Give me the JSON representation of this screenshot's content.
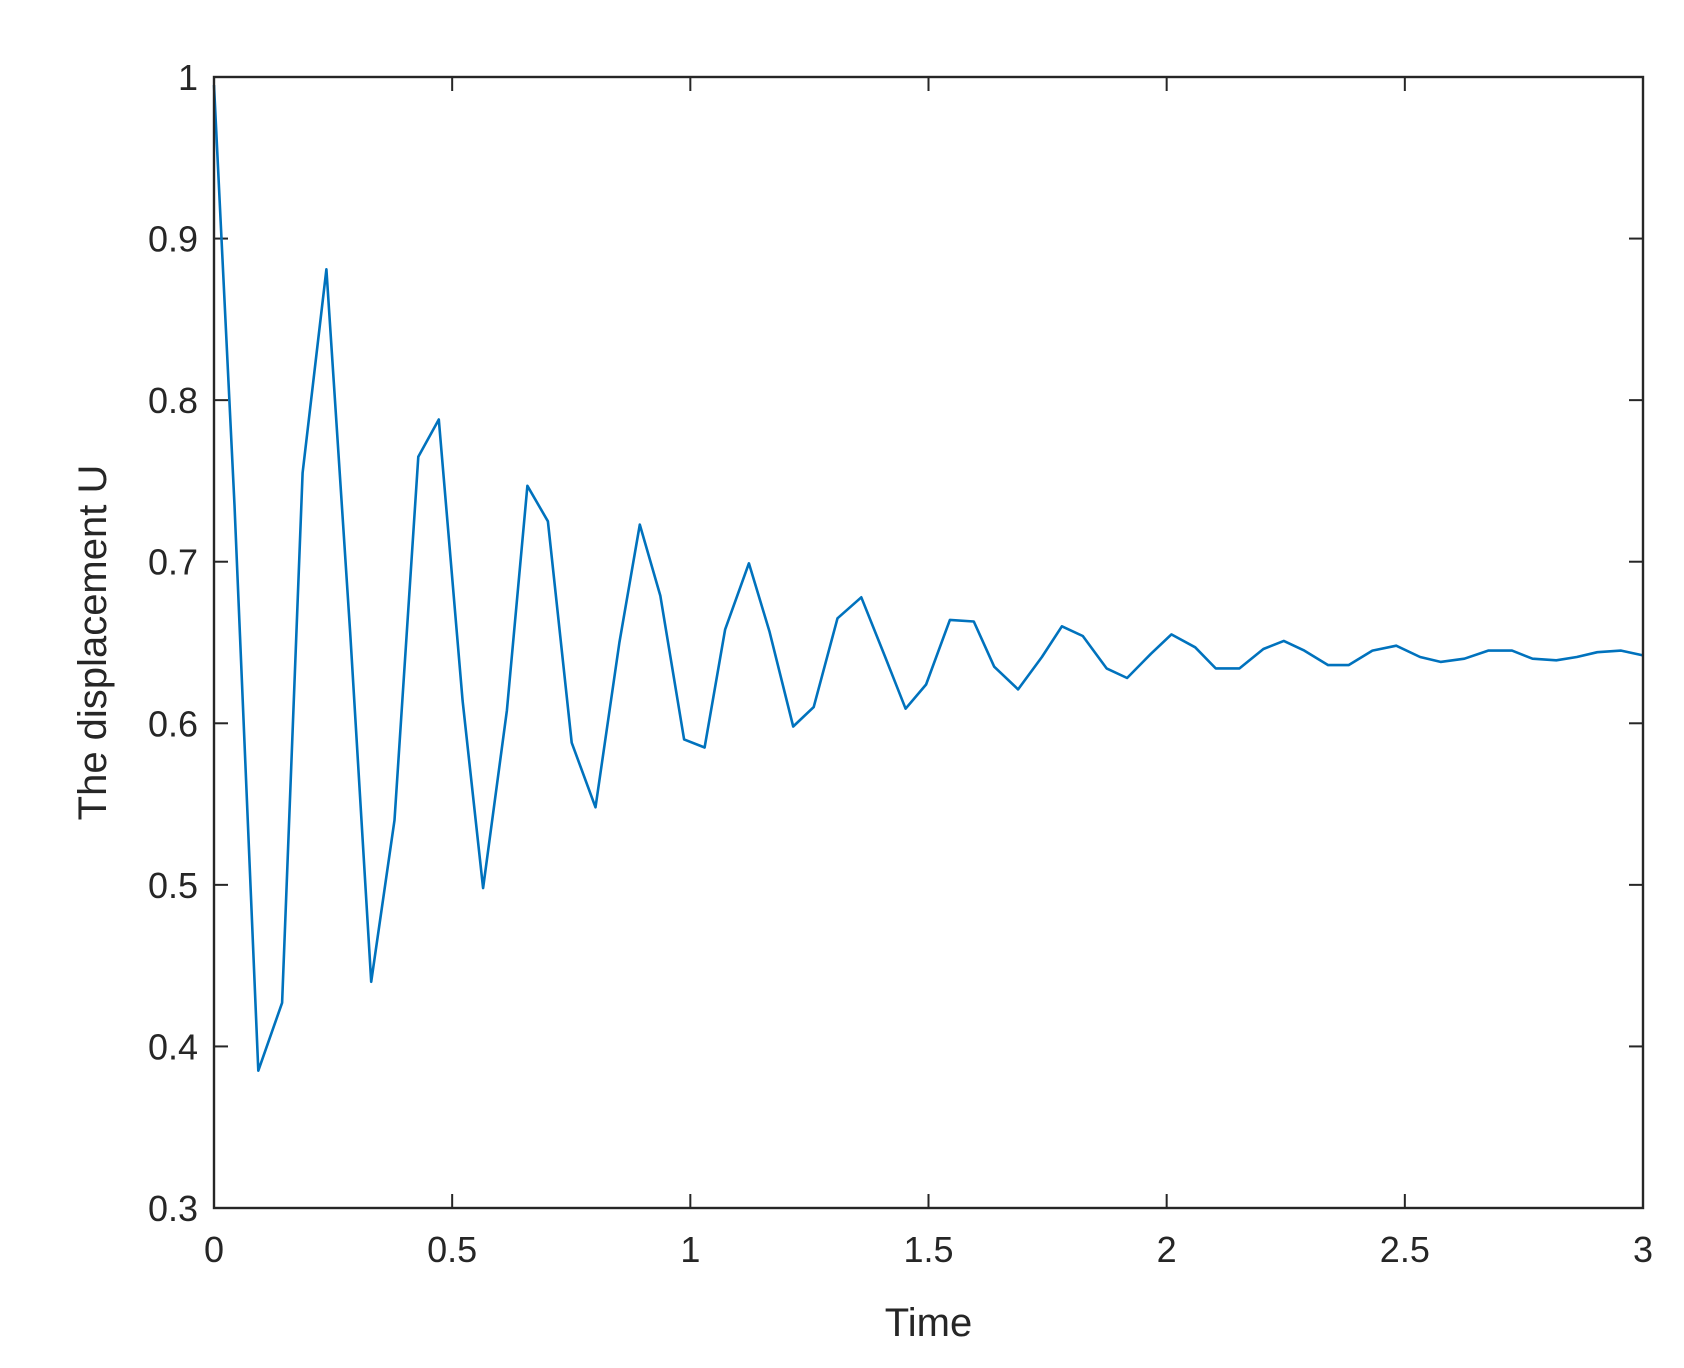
{
  "chart_data": {
    "type": "line",
    "title": "",
    "xlabel": "Time",
    "ylabel": "The displacement U",
    "xlim": [
      0,
      3
    ],
    "ylim": [
      0.3,
      1
    ],
    "xticks": [
      {
        "value": 0,
        "label": "0"
      },
      {
        "value": 0.5,
        "label": "0.5"
      },
      {
        "value": 1,
        "label": "1"
      },
      {
        "value": 1.5,
        "label": "1.5"
      },
      {
        "value": 2,
        "label": "2"
      },
      {
        "value": 2.5,
        "label": "2.5"
      },
      {
        "value": 3,
        "label": "3"
      }
    ],
    "yticks": [
      {
        "value": 0.3,
        "label": "0.3"
      },
      {
        "value": 0.4,
        "label": "0.4"
      },
      {
        "value": 0.5,
        "label": "0.5"
      },
      {
        "value": 0.6,
        "label": "0.6"
      },
      {
        "value": 0.7,
        "label": "0.7"
      },
      {
        "value": 0.8,
        "label": "0.8"
      },
      {
        "value": 0.9,
        "label": "0.9"
      },
      {
        "value": 1,
        "label": "1"
      }
    ],
    "grid": false,
    "line_color": "#0072BD",
    "series": [
      {
        "x": [
          0.0,
          0.043,
          0.093,
          0.143,
          0.186,
          0.236,
          0.286,
          0.33,
          0.379,
          0.429,
          0.472,
          0.522,
          0.565,
          0.615,
          0.658,
          0.701,
          0.751,
          0.801,
          0.851,
          0.894,
          0.937,
          0.987,
          1.03,
          1.073,
          1.123,
          1.166,
          1.216,
          1.259,
          1.309,
          1.359,
          1.409,
          1.452,
          1.495,
          1.545,
          1.595,
          1.638,
          1.688,
          1.738,
          1.78,
          1.824,
          1.874,
          1.917,
          1.967,
          2.01,
          2.06,
          2.103,
          2.153,
          2.203,
          2.246,
          2.289,
          2.339,
          2.382,
          2.432,
          2.482,
          2.532,
          2.575,
          2.625,
          2.675,
          2.725,
          2.768,
          2.818,
          2.861,
          2.904,
          2.954,
          3.0
        ],
        "y": [
          0.995,
          0.735,
          0.385,
          0.427,
          0.755,
          0.881,
          0.656,
          0.44,
          0.54,
          0.765,
          0.788,
          0.614,
          0.498,
          0.608,
          0.747,
          0.725,
          0.588,
          0.548,
          0.65,
          0.723,
          0.679,
          0.59,
          0.585,
          0.658,
          0.699,
          0.657,
          0.598,
          0.61,
          0.665,
          0.678,
          0.641,
          0.609,
          0.624,
          0.664,
          0.663,
          0.635,
          0.621,
          0.641,
          0.66,
          0.654,
          0.634,
          0.628,
          0.643,
          0.655,
          0.647,
          0.634,
          0.634,
          0.646,
          0.651,
          0.645,
          0.636,
          0.636,
          0.645,
          0.648,
          0.641,
          0.638,
          0.64,
          0.645,
          0.645,
          0.64,
          0.639,
          0.641,
          0.644,
          0.645,
          0.642
        ]
      }
    ]
  }
}
